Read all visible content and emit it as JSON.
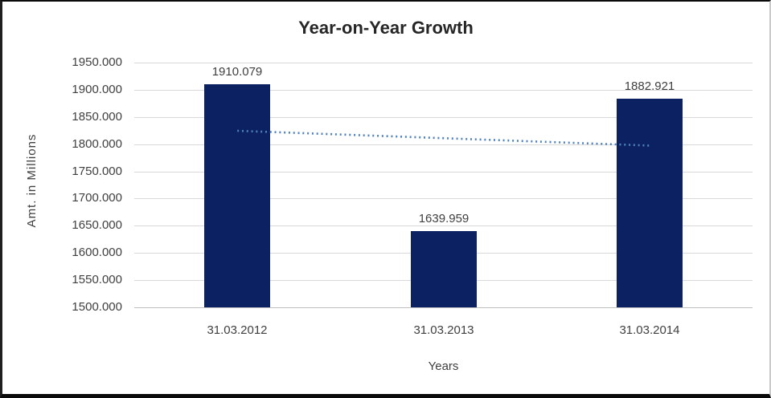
{
  "chart_data": {
    "type": "bar",
    "title": "Year-on-Year Growth",
    "xlabel": "Years",
    "ylabel": "Amt. in Millions",
    "categories": [
      "31.03.2012",
      "31.03.2013",
      "31.03.2014"
    ],
    "values": [
      1910.079,
      1639.959,
      1882.921
    ],
    "data_labels": [
      "1910.079",
      "1639.959",
      "1882.921"
    ],
    "ylim": [
      1500,
      1950
    ],
    "ytick_step": 50,
    "yticks": [
      "1950.000",
      "1900.000",
      "1850.000",
      "1800.000",
      "1750.000",
      "1700.000",
      "1650.000",
      "1600.000",
      "1550.000",
      "1500.000"
    ],
    "grid": true,
    "legend": "none",
    "trendline": {
      "type": "linear",
      "style": "dotted",
      "from_category_index": 0,
      "to_category_index": 2,
      "from_value": 1824.6,
      "to_value": 1797.4
    },
    "colors": {
      "bar": "#0B2161",
      "trendline": "#4F81BD",
      "gridline": "#D9D9D9",
      "axis_line": "#BFBFBF",
      "text": "#3F3F3F",
      "title_text": "#262626",
      "background": "#FFFFFF"
    }
  }
}
